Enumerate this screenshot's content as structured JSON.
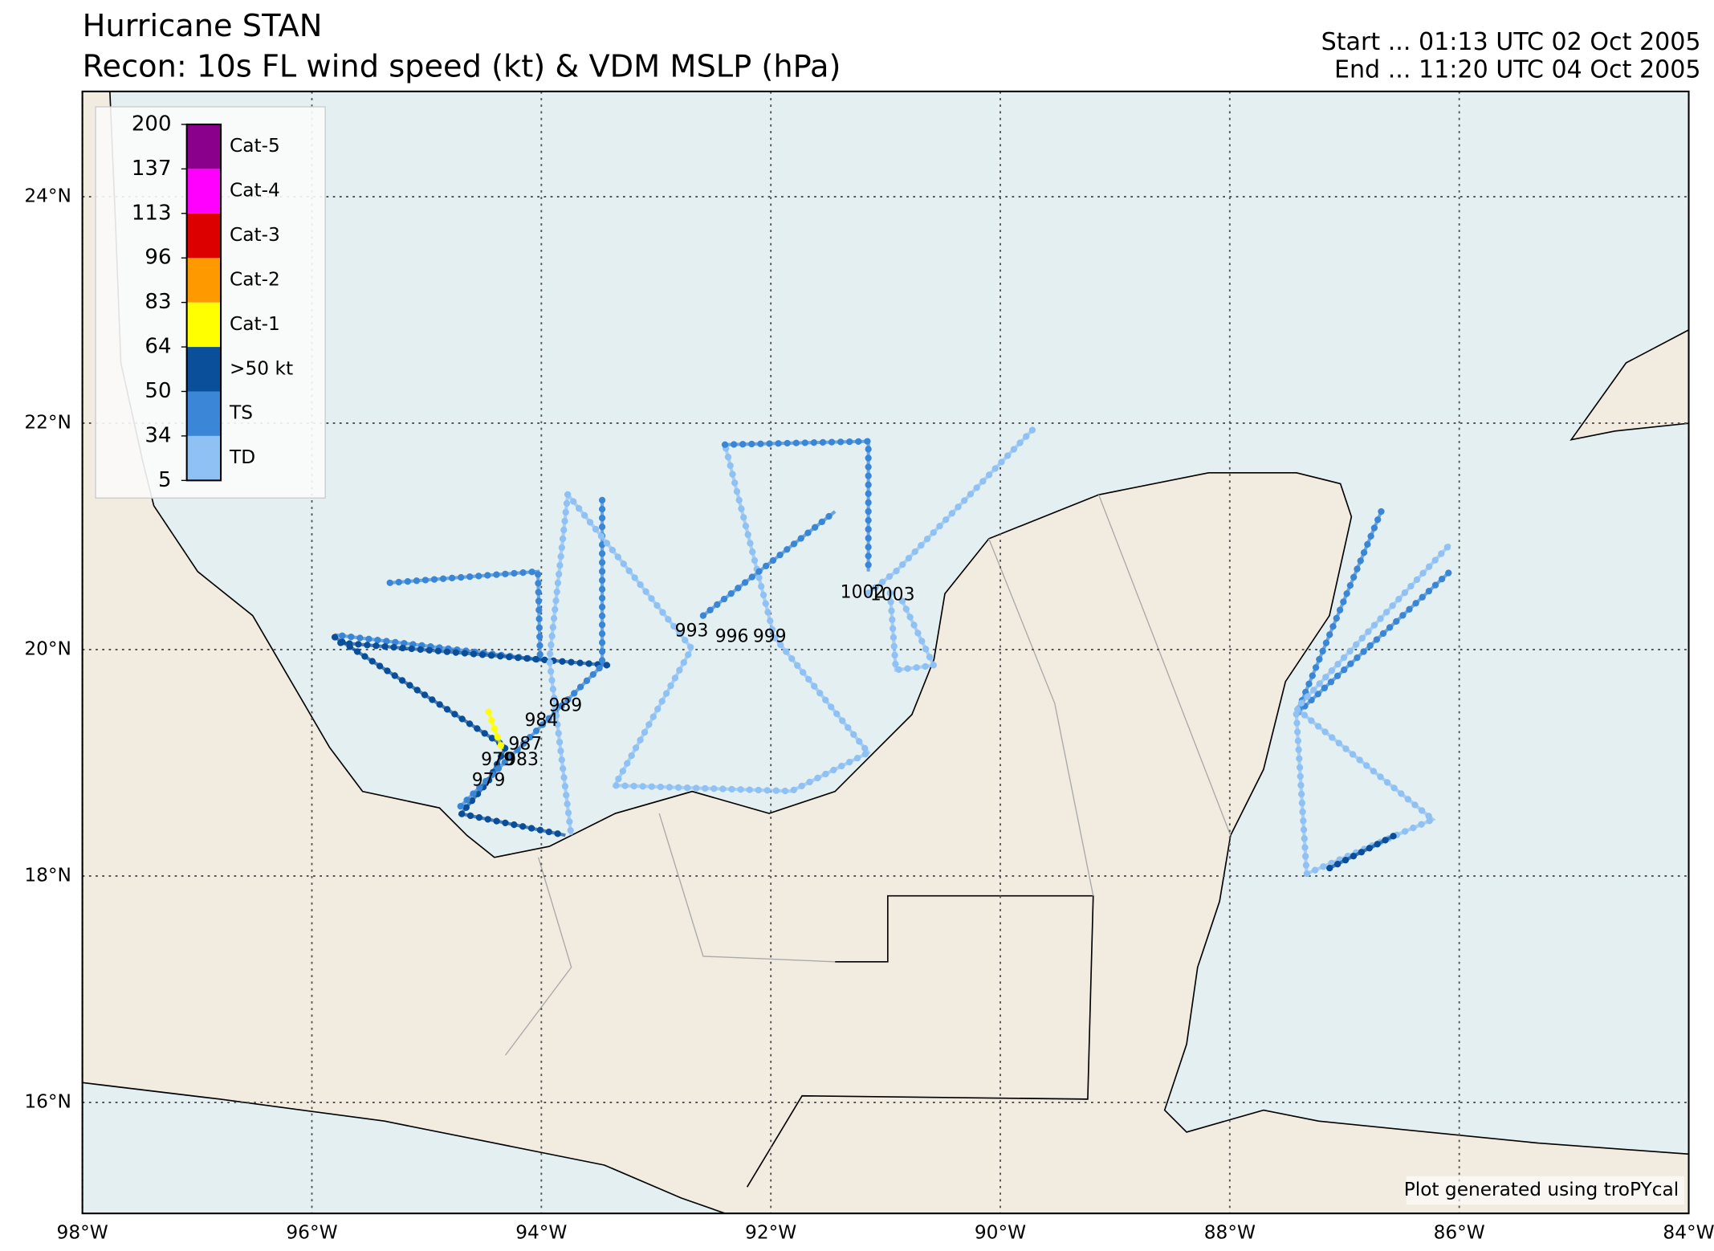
{
  "chart_data": {
    "type": "recon-map",
    "title": "Hurricane STAN",
    "subtitle": "Recon: 10s FL wind speed (kt) & VDM MSLP (hPa)",
    "start": "Start ... 01:13 UTC 02 Oct 2005",
    "end": "End ... 11:20 UTC 04 Oct 2005",
    "credit": "Plot generated using troPYcal",
    "xlim": [
      -98,
      -84
    ],
    "ylim": [
      15.02,
      24.93
    ],
    "xticks": [
      {
        "value": -98,
        "label": "98°W"
      },
      {
        "value": -96,
        "label": "96°W"
      },
      {
        "value": -94,
        "label": "94°W"
      },
      {
        "value": -92,
        "label": "92°W"
      },
      {
        "value": -90,
        "label": "90°W"
      },
      {
        "value": -88,
        "label": "88°W"
      },
      {
        "value": -86,
        "label": "86°W"
      },
      {
        "value": -84,
        "label": "84°W"
      }
    ],
    "yticks": [
      {
        "value": 16,
        "label": "16°N"
      },
      {
        "value": 18,
        "label": "18°N"
      },
      {
        "value": 20,
        "label": "20°N"
      },
      {
        "value": 22,
        "label": "22°N"
      },
      {
        "value": 24,
        "label": "24°N"
      }
    ],
    "grid": true,
    "legend": {
      "ticks": [
        5,
        34,
        50,
        64,
        83,
        96,
        113,
        137,
        200
      ],
      "labels": [
        "TD",
        "TS",
        ">50 kt",
        "Cat-1",
        "Cat-2",
        "Cat-3",
        "Cat-4",
        "Cat-5"
      ],
      "colors": [
        "#8fc1f4",
        "#3b86d6",
        "#0a4f9a",
        "#ffff00",
        "#ff9900",
        "#dd0000",
        "#ff00ff",
        "#8b008b"
      ]
    },
    "tracks": [
      {
        "color": "#3b86d6",
        "lon": [
          -95.32,
          -94.03,
          -94.01,
          -95.8
        ],
        "lat": [
          20.59,
          20.69,
          19.91,
          20.13
        ]
      },
      {
        "color": "#0a4f9a",
        "lon": [
          -95.8,
          -94.31,
          -94.46,
          -94.7,
          -93.79
        ],
        "lat": [
          20.11,
          19.14,
          18.84,
          18.55,
          18.36
        ]
      },
      {
        "color": "#0a4f9a",
        "lon": [
          -95.75,
          -93.4
        ],
        "lat": [
          20.06,
          19.86
        ]
      },
      {
        "color": "#3b86d6",
        "lon": [
          -93.47,
          -93.47,
          -94.72
        ],
        "lat": [
          21.32,
          19.86,
          18.6
        ]
      },
      {
        "color": "#8fc1f4",
        "lon": [
          -93.77,
          -93.93,
          -93.74
        ],
        "lat": [
          21.37,
          19.91,
          18.36
        ]
      },
      {
        "color": "#8fc1f4",
        "lon": [
          -93.77,
          -92.69,
          -93.36,
          -91.82,
          -91.15,
          -91.97,
          -92.4
        ],
        "lat": [
          21.37,
          20.01,
          18.8,
          18.75,
          19.09,
          20.11,
          21.81
        ]
      },
      {
        "color": "#3b86d6",
        "lon": [
          -92.4,
          -91.15,
          -91.15
        ],
        "lat": [
          21.81,
          21.84,
          20.69
        ]
      },
      {
        "color": "#3b86d6",
        "lon": [
          -92.59,
          -91.44
        ],
        "lat": [
          20.3,
          21.22
        ]
      },
      {
        "color": "#8fc1f4",
        "lon": [
          -91.15,
          -90.91,
          -89.71
        ],
        "lat": [
          20.5,
          20.69,
          21.95
        ]
      },
      {
        "color": "#8fc1f4",
        "lon": [
          -90.96,
          -90.91,
          -90.58,
          -90.86
        ],
        "lat": [
          20.5,
          19.82,
          19.86,
          20.44
        ]
      },
      {
        "color": "#3b86d6",
        "lon": [
          -86.68,
          -87.42,
          -86.08
        ],
        "lat": [
          21.22,
          19.43,
          20.69
        ]
      },
      {
        "color": "#8fc1f4",
        "lon": [
          -87.42,
          -87.33,
          -86.23,
          -87.42,
          -86.08
        ],
        "lat": [
          19.43,
          18.02,
          18.5,
          19.48,
          20.93
        ]
      },
      {
        "color": "#0a4f9a",
        "lon": [
          -87.13,
          -86.56
        ],
        "lat": [
          18.07,
          18.36
        ]
      },
      {
        "color": "#ffff00",
        "lon": [
          -94.46,
          -94.39,
          -94.34
        ],
        "lat": [
          19.45,
          19.25,
          19.12
        ]
      }
    ],
    "vdm": [
      {
        "lon": -92.69,
        "lat": 20.16,
        "pressure": 993
      },
      {
        "lon": -92.34,
        "lat": 20.11,
        "pressure": 996
      },
      {
        "lon": -92.01,
        "lat": 20.11,
        "pressure": 999
      },
      {
        "lon": -91.2,
        "lat": 20.5,
        "pressure": 1002
      },
      {
        "lon": -90.94,
        "lat": 20.48,
        "pressure": 1003
      },
      {
        "lon": -93.79,
        "lat": 19.5,
        "pressure": 989
      },
      {
        "lon": -94.0,
        "lat": 19.37,
        "pressure": 984
      },
      {
        "lon": -94.14,
        "lat": 19.16,
        "pressure": 987
      },
      {
        "lon": -94.38,
        "lat": 19.02,
        "pressure": 979
      },
      {
        "lon": -94.17,
        "lat": 19.02,
        "pressure": 983
      },
      {
        "lon": -94.46,
        "lat": 18.84,
        "pressure": 979
      }
    ]
  }
}
